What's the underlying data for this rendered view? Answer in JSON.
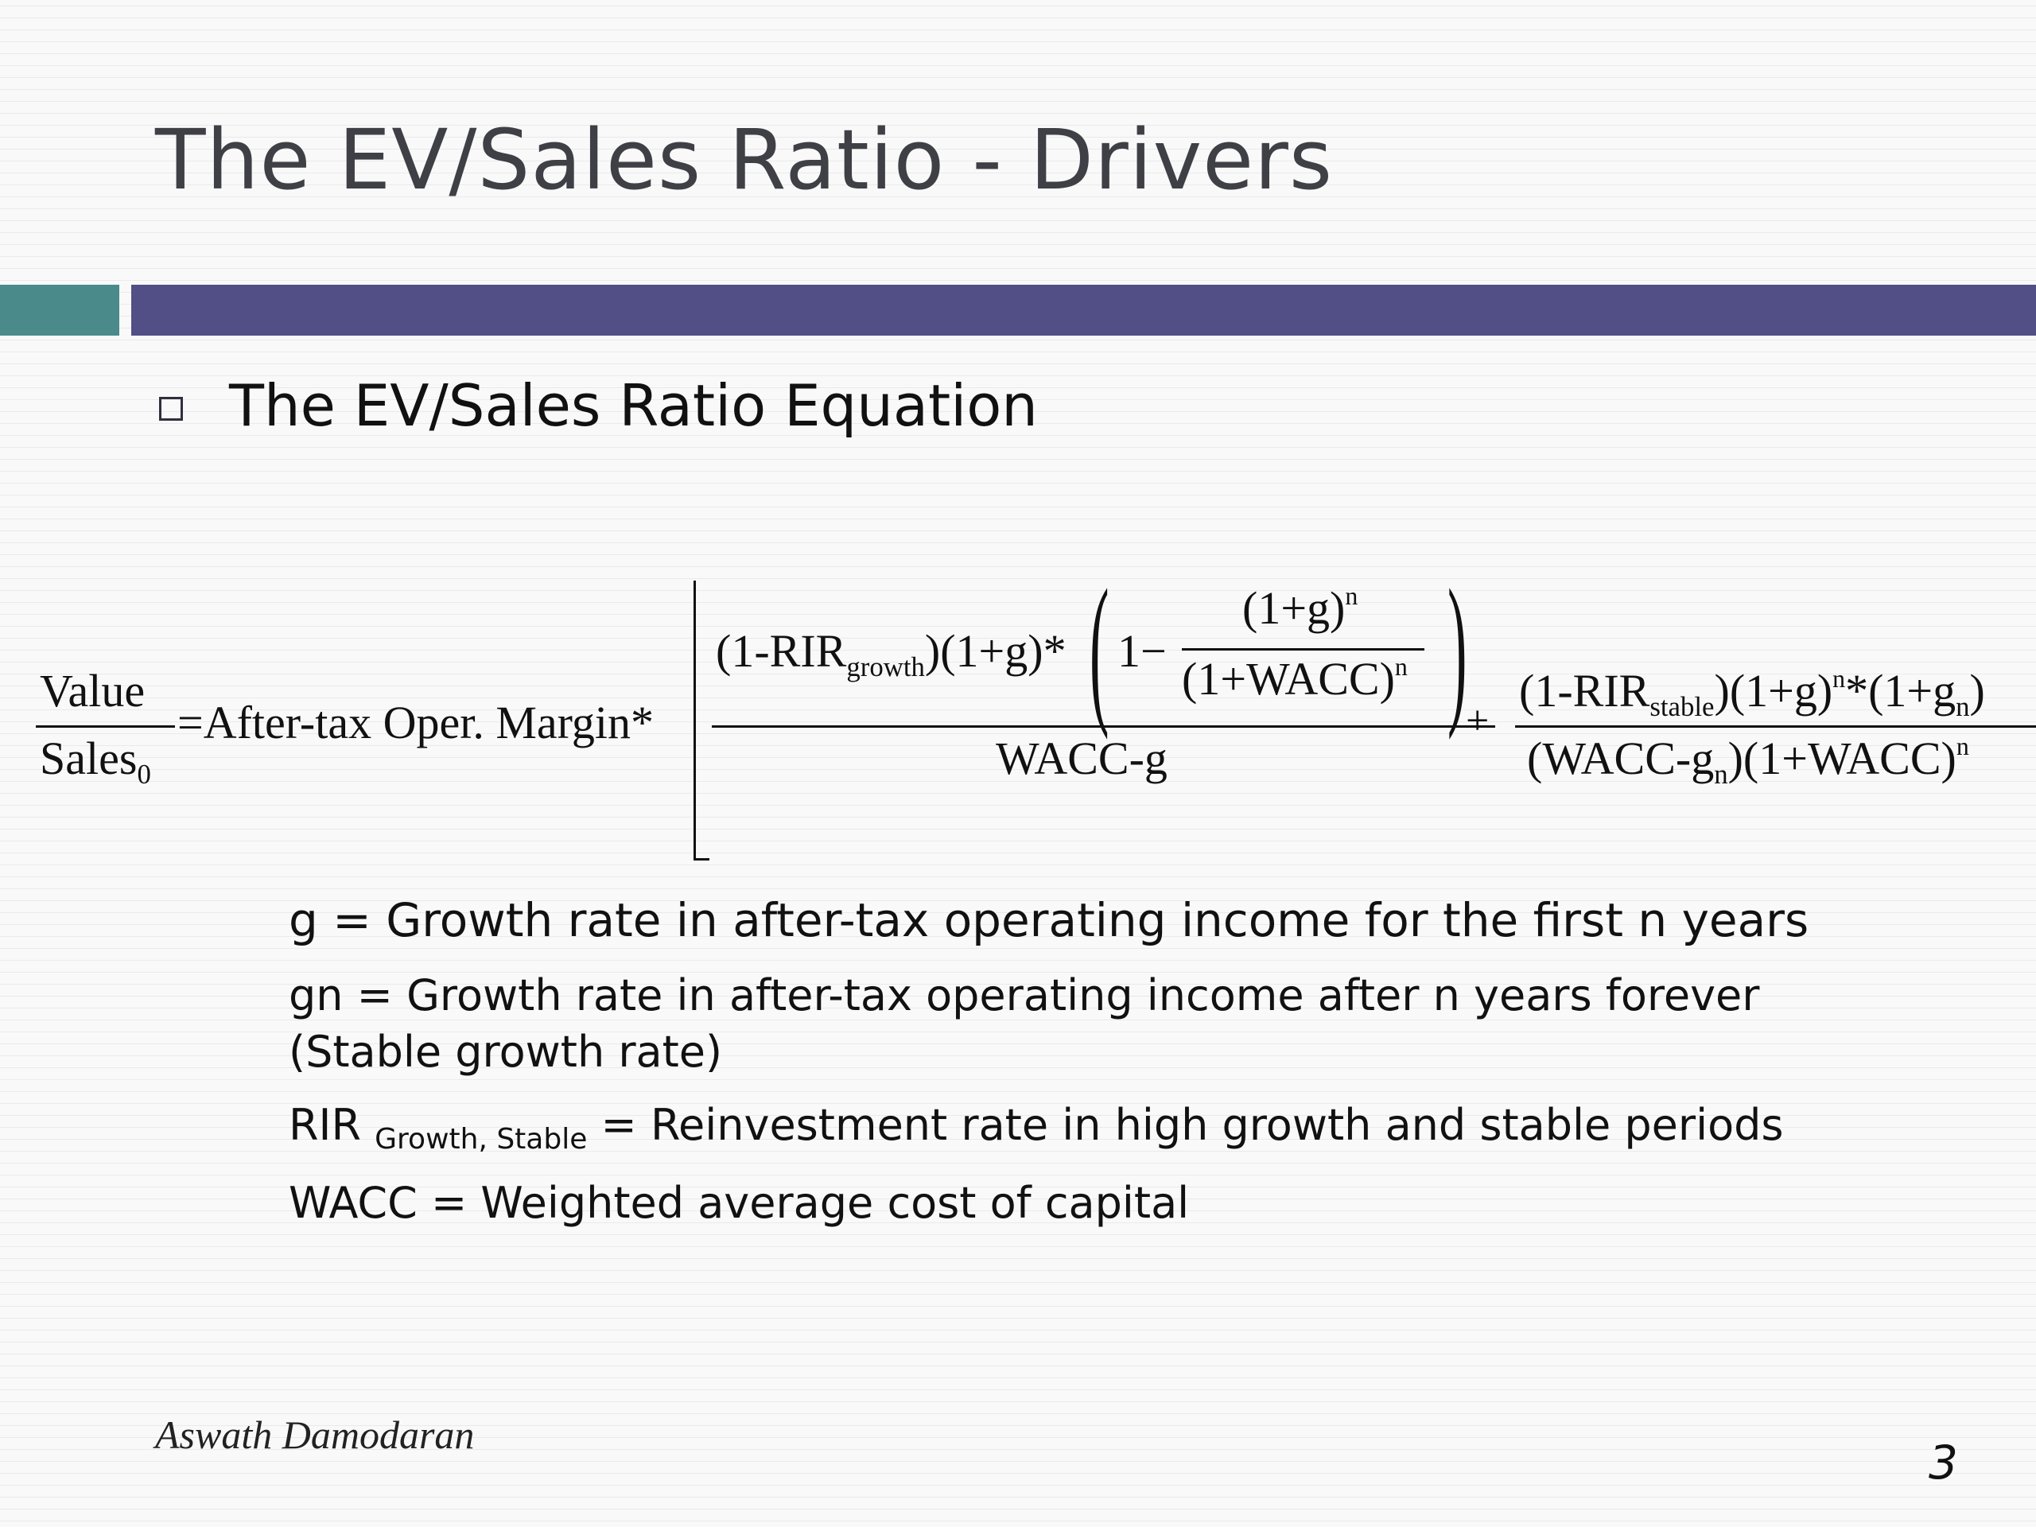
{
  "slide": {
    "title": "The EV/Sales Ratio - Drivers",
    "bullet": "The EV/Sales Ratio Equation",
    "author": "Aswath Damodaran",
    "page_number": "3"
  },
  "equation": {
    "lhs_numerator": "Value",
    "lhs_denominator": "Sales",
    "lhs_denominator_sub": "0",
    "equals_term": "=After-tax Oper. Margin*",
    "term1_num_a": "(1-RIR",
    "term1_num_a_sub": "growth",
    "term1_num_b": ")(1+g)*",
    "one_minus": "1−",
    "inner_num": "(1+g)",
    "inner_num_sup": "n",
    "inner_den": "(1+WACC)",
    "inner_den_sup": "n",
    "term1_den": "WACC-g",
    "plus": "+",
    "term2_num_a": "(1-RIR",
    "term2_num_a_sub": "stable",
    "term2_num_b": ")(1+g)",
    "term2_num_b_sup": "n",
    "term2_num_c": "*(1+g",
    "term2_num_c_sub": "n",
    "term2_num_d": ")",
    "term2_den_a": "(WACC-g",
    "term2_den_a_sub": "n",
    "term2_den_b": ")(1+WACC)",
    "term2_den_b_sup": "n"
  },
  "definitions": {
    "g": "g = Growth rate in after-tax operating income for the first n years",
    "gn": "gn = Growth rate in after-tax operating income after n years forever (Stable growth rate)",
    "rir_lead": "RIR",
    "rir_sub": "Growth, Stable",
    "rir_rest": " = Reinvestment rate in high growth and stable periods",
    "wacc": "WACC = Weighted average cost of capital"
  }
}
